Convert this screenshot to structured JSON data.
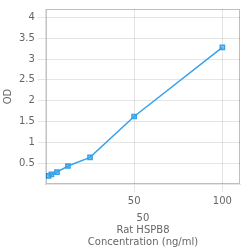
{
  "chart_data": {
    "type": "line",
    "x": [
      1.563,
      3.125,
      6.25,
      12.5,
      25,
      50,
      100
    ],
    "values": [
      0.197,
      0.229,
      0.287,
      0.432,
      0.638,
      1.62,
      3.28
    ],
    "xlabel": "50\nRat HSPB8\nConcentration (ng/ml)",
    "ylabel": "OD",
    "xlim": [
      0,
      110
    ],
    "ylim": [
      0,
      4.2
    ],
    "xticks": [
      50,
      100
    ],
    "yticks": [
      0.5,
      1,
      1.5,
      2,
      2.5,
      3,
      3.5,
      4
    ],
    "marker": "square",
    "line_style": "solid",
    "grid": true
  }
}
